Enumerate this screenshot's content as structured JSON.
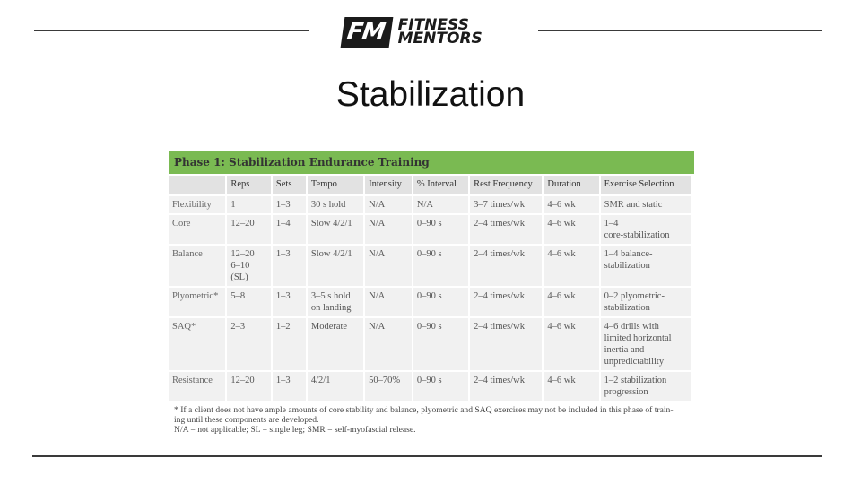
{
  "header": {
    "logo_mark": "FM",
    "logo_word_1": "FITNESS",
    "logo_word_2": "MENTORS"
  },
  "slide": {
    "title": "Stabilization"
  },
  "table": {
    "heading": "Phase 1: Stabilization Endurance Training",
    "columns": [
      "",
      "Reps",
      "Sets",
      "Tempo",
      "Intensity",
      "% Interval",
      "Rest Frequency",
      "Duration",
      "Exercise Selection"
    ],
    "rows": [
      [
        "Flexibility",
        "1",
        "1–3",
        "30 s hold",
        "N/A",
        "N/A",
        "3–7 times/wk",
        "4–6 wk",
        "SMR and static"
      ],
      [
        "Core",
        "12–20",
        "1–4",
        "Slow 4/2/1",
        "N/A",
        "0–90 s",
        "2–4 times/wk",
        "4–6 wk",
        "1–4\ncore-stabilization"
      ],
      [
        "Balance",
        "12–20\n6–10 (SL)",
        "1–3",
        "Slow 4/2/1",
        "N/A",
        "0–90 s",
        "2–4 times/wk",
        "4–6 wk",
        "1–4 balance-\nstabilization"
      ],
      [
        "Plyometric*",
        "5–8",
        "1–3",
        "3–5 s hold\non landing",
        "N/A",
        "0–90 s",
        "2–4 times/wk",
        "4–6 wk",
        "0–2 plyometric-\nstabilization"
      ],
      [
        "SAQ*",
        "2–3",
        "1–2",
        "Moderate",
        "N/A",
        "0–90 s",
        "2–4 times/wk",
        "4–6 wk",
        "4–6 drills with\nlimited horizontal\ninertia and\nunpredictability"
      ],
      [
        "Resistance",
        "12–20",
        "1–3",
        "4/2/1",
        "50–70%",
        "0–90 s",
        "2–4 times/wk",
        "4–6 wk",
        "1–2 stabilization\nprogression"
      ]
    ],
    "note_1": "* If a client does not have ample amounts of core stability and balance, plyometric and SAQ exercises may not be included in this phase of train-",
    "note_2": "ing until these components are developed.",
    "note_3": "N/A = not applicable; SL = single leg; SMR = self-myofascial release."
  }
}
